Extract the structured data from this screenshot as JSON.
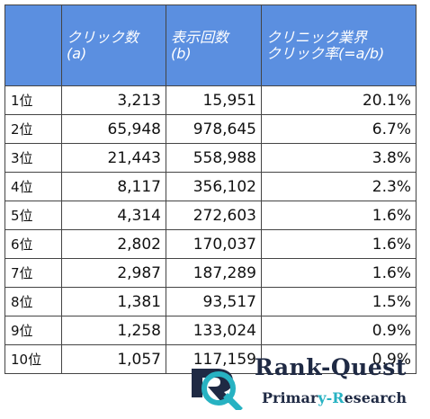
{
  "table": {
    "headers": {
      "clicks": [
        "クリック数",
        "(a)"
      ],
      "impressions": [
        "表示回数",
        "(b)"
      ],
      "ctr": [
        "クリニック業界",
        "クリック率(=a/b)"
      ]
    },
    "rows": [
      {
        "rank": "1位",
        "clicks": "3,213",
        "impressions": "15,951",
        "ctr": "20.1%"
      },
      {
        "rank": "2位",
        "clicks": "65,948",
        "impressions": "978,645",
        "ctr": "6.7%"
      },
      {
        "rank": "3位",
        "clicks": "21,443",
        "impressions": "558,988",
        "ctr": "3.8%"
      },
      {
        "rank": "4位",
        "clicks": "8,117",
        "impressions": "356,102",
        "ctr": "2.3%"
      },
      {
        "rank": "5位",
        "clicks": "4,314",
        "impressions": "272,603",
        "ctr": "1.6%"
      },
      {
        "rank": "6位",
        "clicks": "2,802",
        "impressions": "170,037",
        "ctr": "1.6%"
      },
      {
        "rank": "7位",
        "clicks": "2,987",
        "impressions": "187,289",
        "ctr": "1.6%"
      },
      {
        "rank": "8位",
        "clicks": "1,381",
        "impressions": "93,517",
        "ctr": "1.5%"
      },
      {
        "rank": "9位",
        "clicks": "1,258",
        "impressions": "133,024",
        "ctr": "0.9%"
      },
      {
        "rank": "10位",
        "clicks": "1,057",
        "impressions": "117,159",
        "ctr": "0.9%"
      }
    ]
  },
  "logo": {
    "name": "Rank-Quest",
    "tagline_part1": "Primar",
    "tagline_accent": "y-R",
    "tagline_part2": "esearch",
    "colors": {
      "navy": "#1f2a44",
      "teal": "#27b2c2",
      "header": "#5b8fe0"
    }
  }
}
